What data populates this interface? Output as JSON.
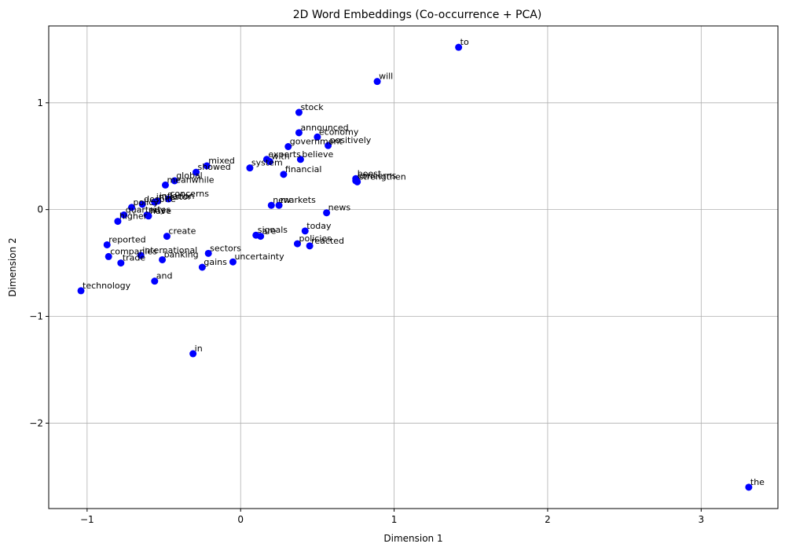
{
  "chart_data": {
    "type": "scatter",
    "title": "2D Word Embeddings (Co-occurrence + PCA)",
    "xlabel": "Dimension 1",
    "ylabel": "Dimension 2",
    "xlim": [
      -1.25,
      3.5
    ],
    "ylim": [
      -2.8,
      1.72
    ],
    "xticks": [
      -1,
      0,
      1,
      2,
      3
    ],
    "yticks": [
      -2,
      -1,
      0,
      1
    ],
    "grid": true,
    "marker_color": "#0000ff",
    "points": [
      {
        "label": "to",
        "x": 1.42,
        "y": 1.52
      },
      {
        "label": "will",
        "x": 0.89,
        "y": 1.2
      },
      {
        "label": "stock",
        "x": 0.38,
        "y": 0.91
      },
      {
        "label": "announced",
        "x": 0.38,
        "y": 0.72
      },
      {
        "label": "economy",
        "x": 0.5,
        "y": 0.68
      },
      {
        "label": "government",
        "x": 0.31,
        "y": 0.59
      },
      {
        "label": "positively",
        "x": 0.57,
        "y": 0.6
      },
      {
        "label": "experts",
        "x": 0.17,
        "y": 0.47
      },
      {
        "label": "with",
        "x": 0.19,
        "y": 0.45
      },
      {
        "label": "believe",
        "x": 0.39,
        "y": 0.47
      },
      {
        "label": "system",
        "x": 0.06,
        "y": 0.39
      },
      {
        "label": "financial",
        "x": 0.28,
        "y": 0.33
      },
      {
        "label": "boost",
        "x": 0.75,
        "y": 0.29
      },
      {
        "label": "concerns",
        "x": 0.75,
        "y": 0.27
      },
      {
        "label": "strengthen",
        "x": 0.76,
        "y": 0.26
      },
      {
        "label": "mixed",
        "x": -0.22,
        "y": 0.41
      },
      {
        "label": "showed",
        "x": -0.29,
        "y": 0.35
      },
      {
        "label": "global",
        "x": -0.43,
        "y": 0.27
      },
      {
        "label": "meanwhile",
        "x": -0.49,
        "y": 0.23
      },
      {
        "label": "concerns",
        "x": -0.47,
        "y": 0.1
      },
      {
        "label": "inflation",
        "x": -0.54,
        "y": 0.08
      },
      {
        "label": "investor",
        "x": -0.56,
        "y": 0.07
      },
      {
        "label": "despite",
        "x": -0.64,
        "y": 0.05
      },
      {
        "label": "policy",
        "x": -0.71,
        "y": 0.02
      },
      {
        "label": "quarterly",
        "x": -0.76,
        "y": -0.05
      },
      {
        "label": "rates",
        "x": -0.61,
        "y": -0.05
      },
      {
        "label": "have",
        "x": -0.6,
        "y": -0.06
      },
      {
        "label": "higher",
        "x": -0.8,
        "y": -0.11
      },
      {
        "label": "new",
        "x": 0.2,
        "y": 0.04
      },
      {
        "label": "markets",
        "x": 0.25,
        "y": 0.04
      },
      {
        "label": "news",
        "x": 0.56,
        "y": -0.03
      },
      {
        "label": "today",
        "x": 0.42,
        "y": -0.2
      },
      {
        "label": "signals",
        "x": 0.1,
        "y": -0.24
      },
      {
        "label": "are",
        "x": 0.13,
        "y": -0.25
      },
      {
        "label": "policies",
        "x": 0.37,
        "y": -0.32
      },
      {
        "label": "reacted",
        "x": 0.45,
        "y": -0.34
      },
      {
        "label": "create",
        "x": -0.48,
        "y": -0.25
      },
      {
        "label": "reported",
        "x": -0.87,
        "y": -0.33
      },
      {
        "label": "companies",
        "x": -0.86,
        "y": -0.44
      },
      {
        "label": "international",
        "x": -0.65,
        "y": -0.43
      },
      {
        "label": "trade",
        "x": -0.78,
        "y": -0.5
      },
      {
        "label": "banking",
        "x": -0.51,
        "y": -0.47
      },
      {
        "label": "sectors",
        "x": -0.21,
        "y": -0.41
      },
      {
        "label": "gains",
        "x": -0.25,
        "y": -0.54
      },
      {
        "label": "uncertainty",
        "x": -0.05,
        "y": -0.49
      },
      {
        "label": "and",
        "x": -0.56,
        "y": -0.67
      },
      {
        "label": "technology",
        "x": -1.04,
        "y": -0.76
      },
      {
        "label": "in",
        "x": -0.31,
        "y": -1.35
      },
      {
        "label": "the",
        "x": 3.31,
        "y": -2.6
      }
    ]
  }
}
